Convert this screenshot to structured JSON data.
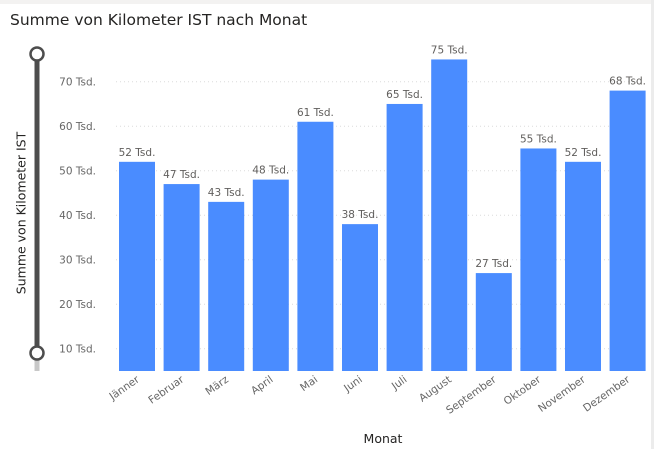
{
  "chart_data": {
    "type": "bar",
    "title": "Summe von Kilometer IST nach Monat",
    "xlabel": "Monat",
    "ylabel": "Summe von Kilometer IST",
    "categories": [
      "Jänner",
      "Februar",
      "März",
      "April",
      "Mai",
      "Juni",
      "Juli",
      "August",
      "September",
      "Oktober",
      "November",
      "Dezember"
    ],
    "values": [
      52000,
      47000,
      43000,
      48000,
      61000,
      38000,
      65000,
      75000,
      27000,
      55000,
      52000,
      68000
    ],
    "data_labels": [
      "52 Tsd.",
      "47 Tsd.",
      "43 Tsd.",
      "48 Tsd.",
      "61 Tsd.",
      "38 Tsd.",
      "65 Tsd.",
      "75 Tsd.",
      "27 Tsd.",
      "55 Tsd.",
      "52 Tsd.",
      "68 Tsd."
    ],
    "y_ticks": [
      10000,
      20000,
      30000,
      40000,
      50000,
      60000,
      70000
    ],
    "y_tick_labels": [
      "10 Tsd.",
      "20 Tsd.",
      "30 Tsd.",
      "40 Tsd.",
      "50 Tsd.",
      "60 Tsd.",
      "70 Tsd."
    ],
    "ylim": [
      5000,
      76000
    ],
    "grid": true,
    "bar_color": "#4a8cff",
    "grid_color": "#dcdcdc"
  },
  "zoom_slider": {
    "orientation": "vertical",
    "range": [
      5000,
      76000
    ],
    "track_color": "#4d4d4d"
  }
}
